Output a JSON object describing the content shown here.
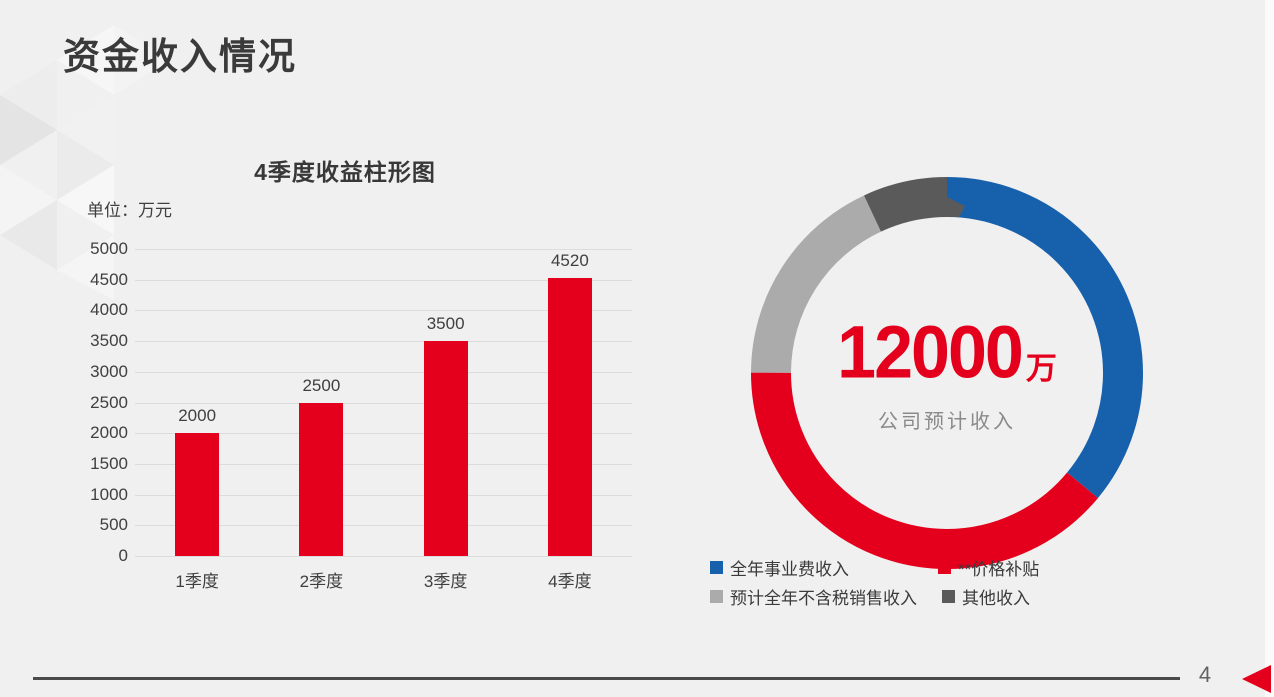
{
  "slide": {
    "title": "资金收入情况",
    "page_number": "4",
    "background_color": "#F0F0F0",
    "accent_red": "#E4001C",
    "footer_line_color": "#4A4A4A"
  },
  "chart_data": [
    {
      "type": "bar",
      "title": "4季度收益柱形图",
      "unit_label": "单位：万元",
      "categories": [
        "1季度",
        "2季度",
        "3季度",
        "4季度"
      ],
      "values": [
        2000,
        2500,
        3500,
        4520
      ],
      "bar_color": "#E4001C",
      "xlabel": "",
      "ylabel": "",
      "ylim": [
        0,
        5000
      ],
      "ytick_step": 500,
      "grid": true,
      "value_labels_shown": true,
      "legend": "none"
    },
    {
      "type": "pie",
      "subtype": "donut",
      "start_angle_deg": 0,
      "direction": "clockwise",
      "center_value": "12000",
      "center_unit": "万",
      "center_caption": "公司预计收入",
      "legend_position": "bottom-left",
      "segments": [
        {
          "label": "全年事业费收入",
          "color": "#1760AC",
          "pct": 36
        },
        {
          "label": "**价格补贴",
          "color": "#E4001C",
          "pct": 39
        },
        {
          "label": "预计全年不含税销售收入",
          "color": "#ABABAB",
          "pct": 18
        },
        {
          "label": "其他收入",
          "color": "#5A5A5A",
          "pct": 7
        }
      ]
    }
  ]
}
